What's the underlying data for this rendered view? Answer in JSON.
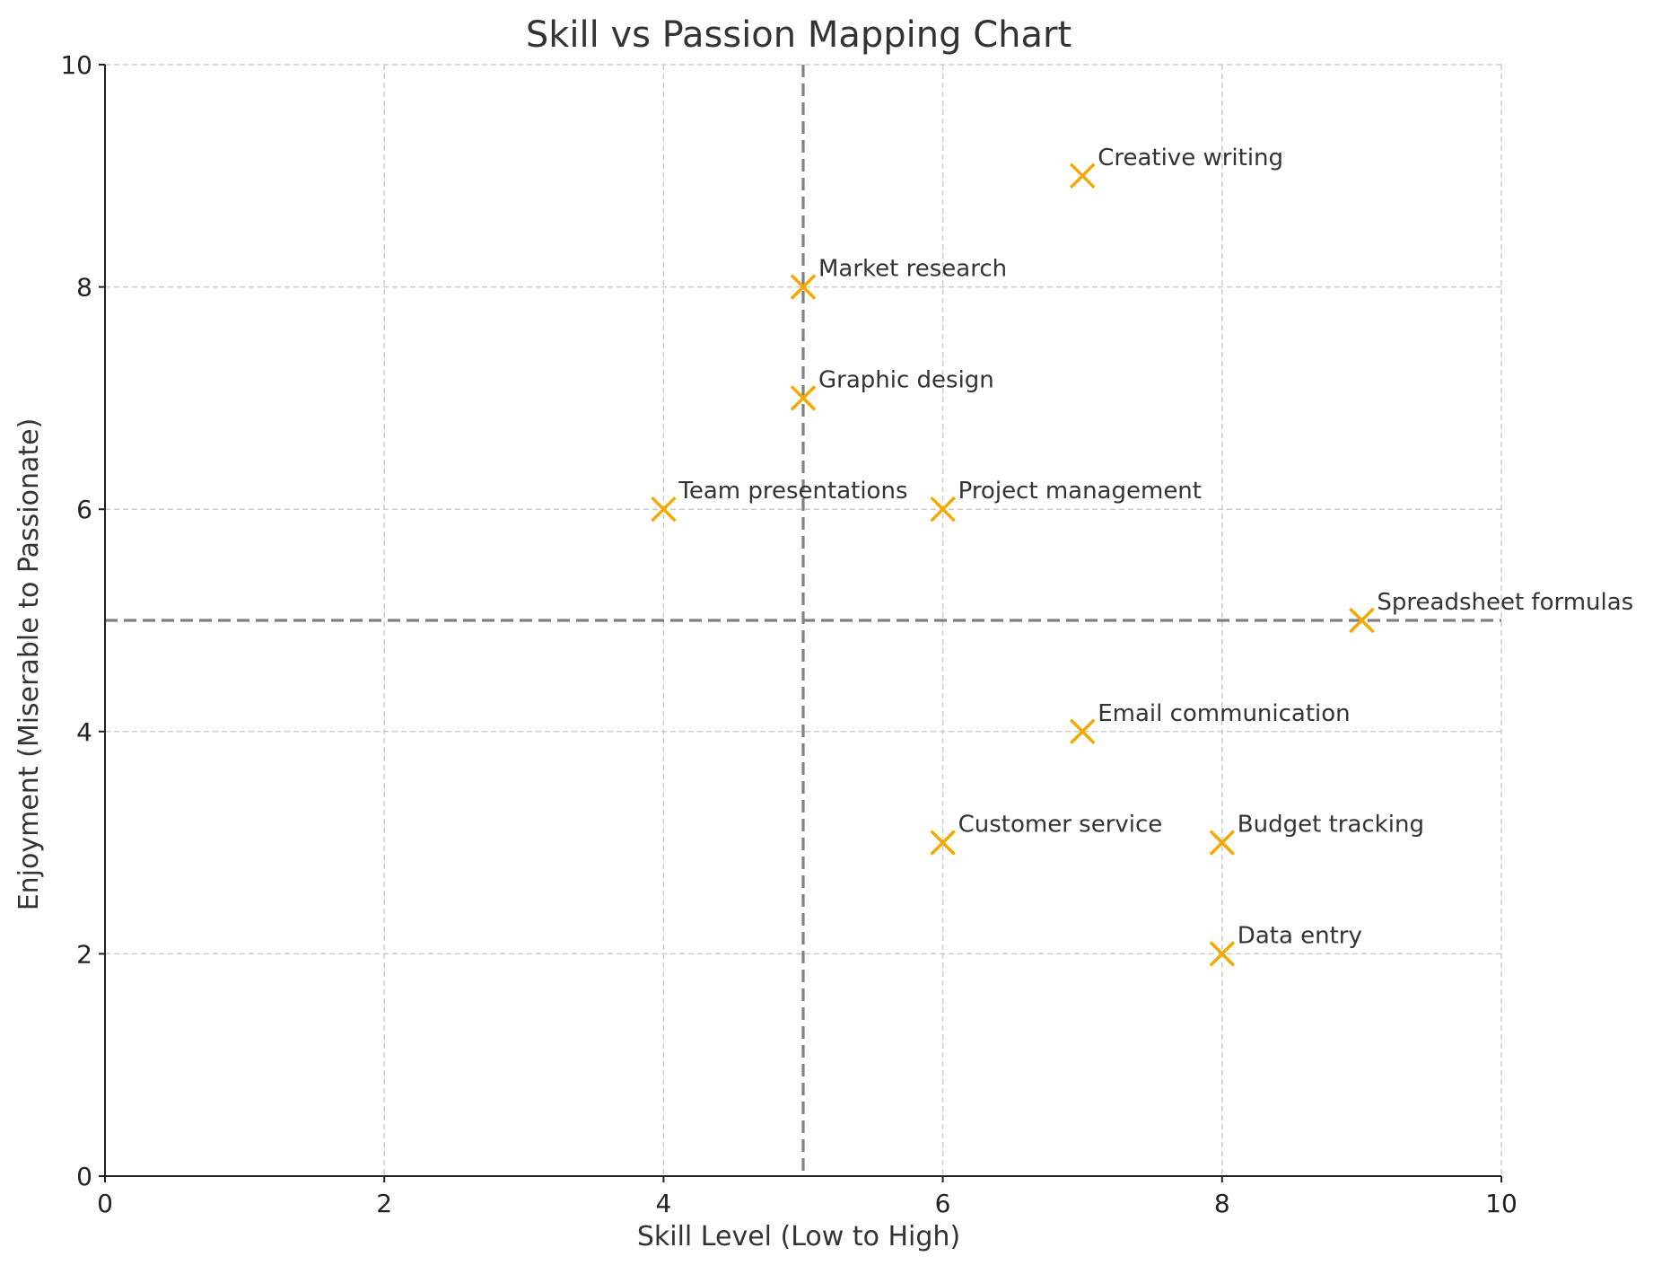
{
  "chart_data": {
    "type": "scatter",
    "title": "Skill vs Passion Mapping Chart",
    "xlabel": "Skill Level (Low to High)",
    "ylabel": "Enjoyment (Miserable to Passionate)",
    "xlim": [
      0,
      10
    ],
    "ylim": [
      0,
      10
    ],
    "xticks": [
      "0",
      "2",
      "4",
      "6",
      "8",
      "10"
    ],
    "yticks": [
      "0",
      "2",
      "4",
      "6",
      "8",
      "10"
    ],
    "xtick_values": [
      0,
      2,
      4,
      6,
      8,
      10
    ],
    "ytick_values": [
      0,
      2,
      4,
      6,
      8,
      10
    ],
    "grid": true,
    "marker": "x",
    "marker_color": "#F5A900",
    "reference_lines": {
      "x": 5,
      "y": 5,
      "color": "#808080",
      "style": "dashed"
    },
    "points": [
      {
        "label": "Creative writing",
        "x": 7,
        "y": 9
      },
      {
        "label": "Market research",
        "x": 5,
        "y": 8
      },
      {
        "label": "Graphic design",
        "x": 5,
        "y": 7
      },
      {
        "label": "Team presentations",
        "x": 4,
        "y": 6
      },
      {
        "label": "Project management",
        "x": 6,
        "y": 6
      },
      {
        "label": "Spreadsheet formulas",
        "x": 9,
        "y": 5
      },
      {
        "label": "Email communication",
        "x": 7,
        "y": 4
      },
      {
        "label": "Customer service",
        "x": 6,
        "y": 3
      },
      {
        "label": "Budget tracking",
        "x": 8,
        "y": 3
      },
      {
        "label": "Data entry",
        "x": 8,
        "y": 2
      }
    ]
  }
}
